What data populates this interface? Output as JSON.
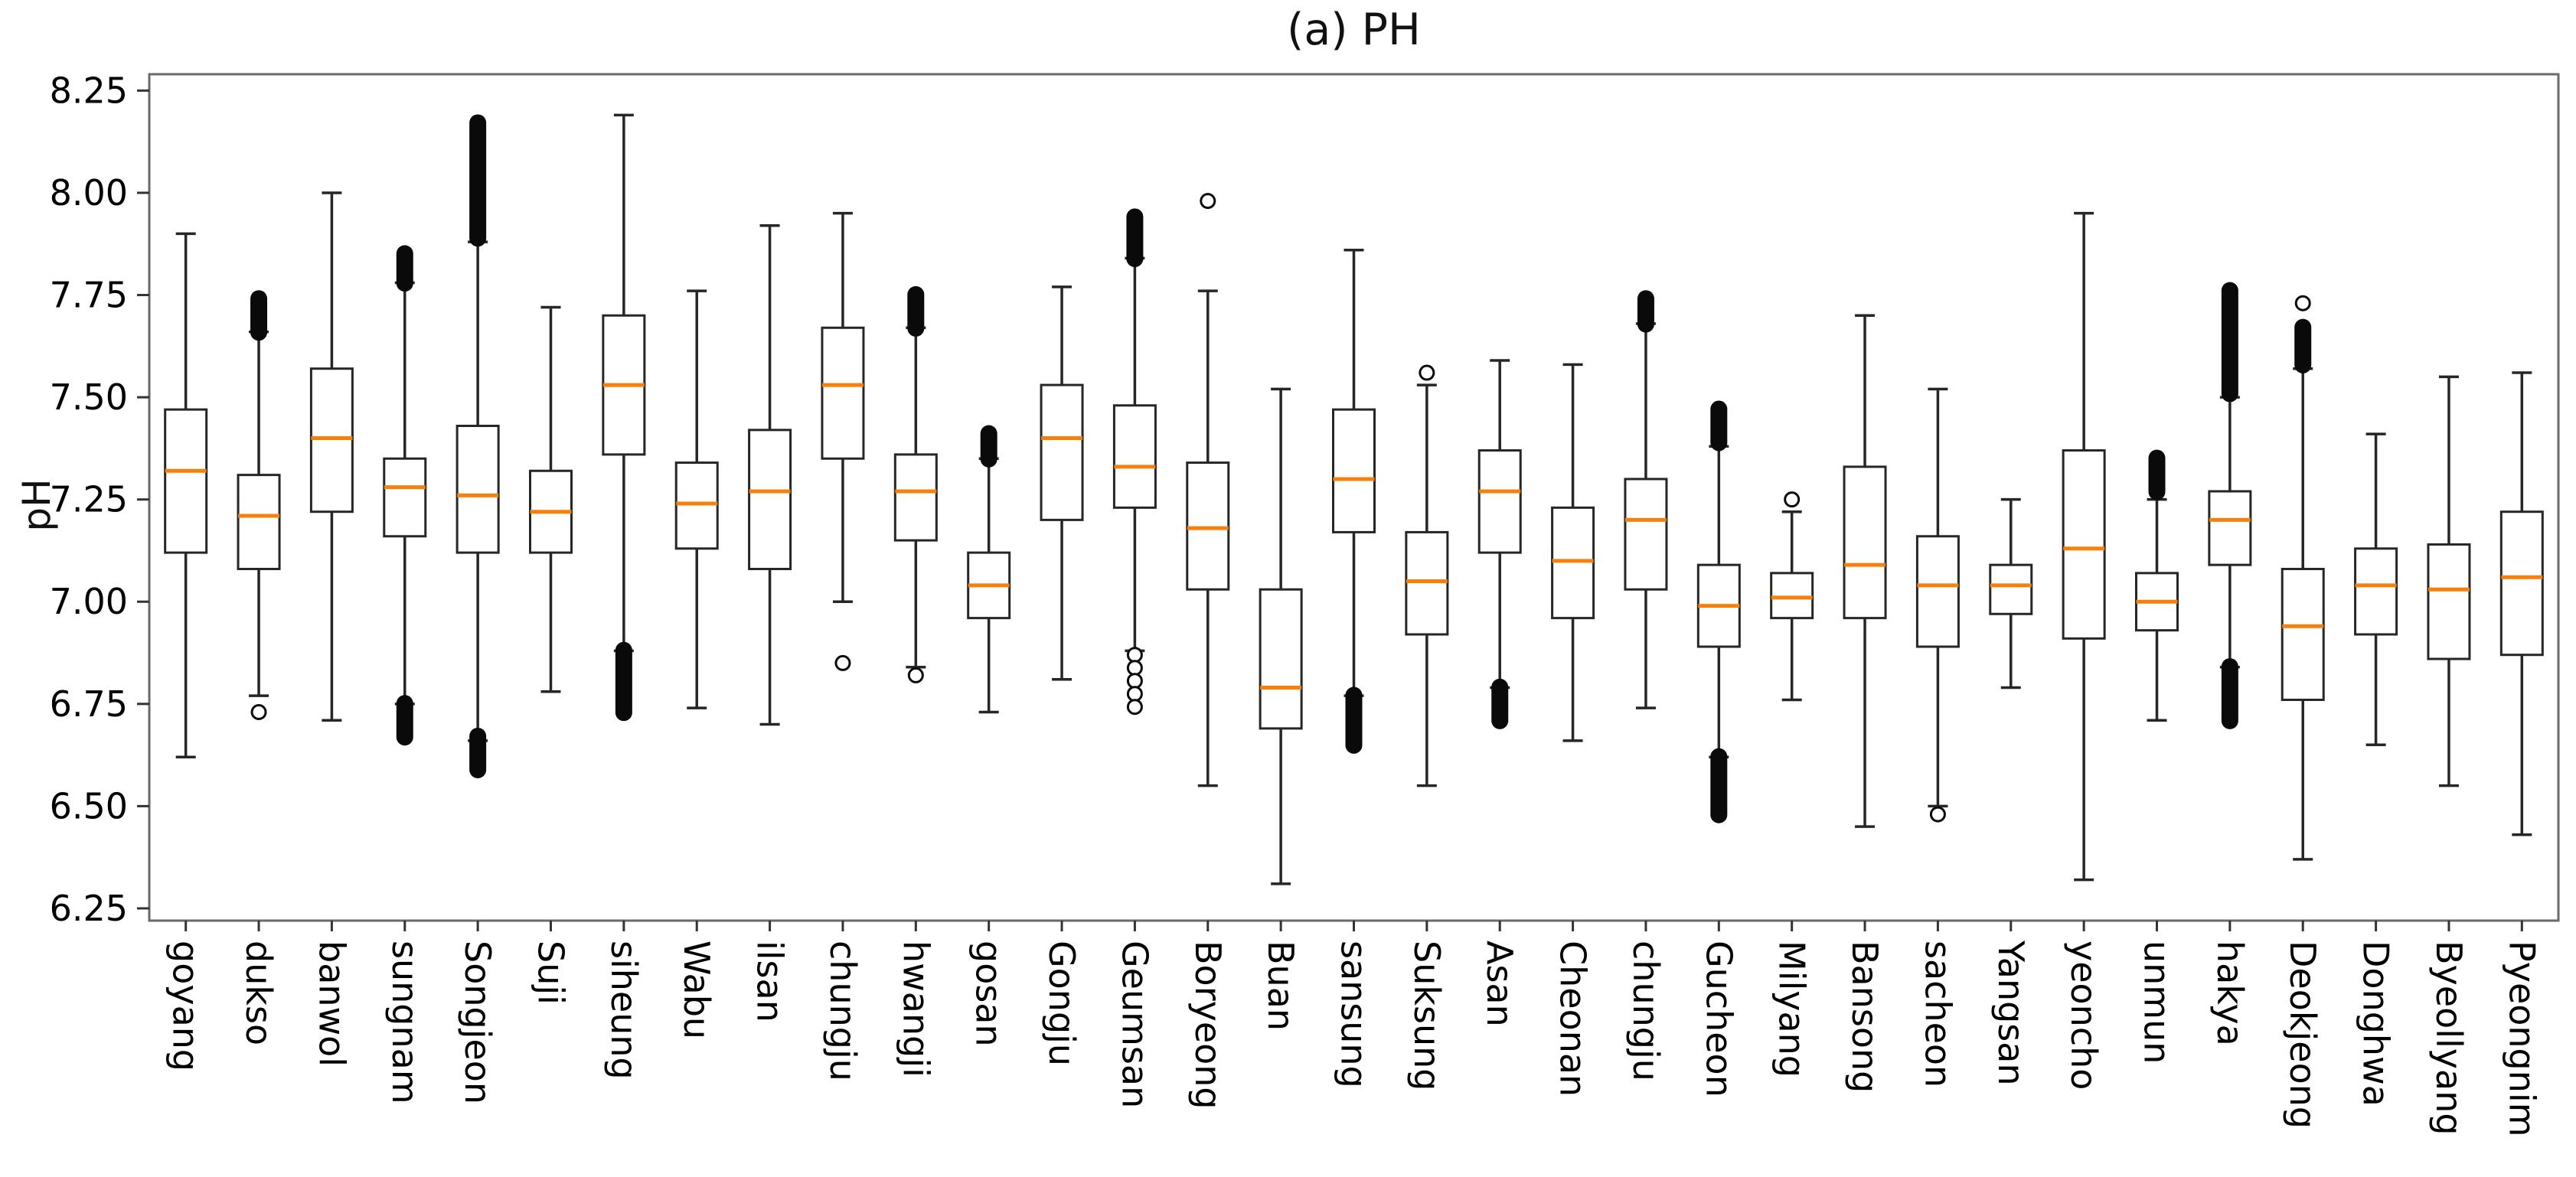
{
  "page": {
    "background": "#ffffff"
  },
  "chart_data": {
    "type": "box",
    "title": "(a) PH",
    "ylabel": "pH",
    "xlabel": "",
    "ylim": [
      6.22,
      8.29
    ],
    "yticks": [
      8.25,
      8.0,
      7.75,
      7.5,
      7.25,
      7.0,
      6.75,
      6.5,
      6.25
    ],
    "grid": false,
    "legend": null,
    "colors": {
      "median": "#f7800d",
      "box_edge": "#262626",
      "whisker": "#262626",
      "outlier": "#0a0a0a",
      "spine": "#6a6a6a",
      "tick": "#333333",
      "text": "#000000",
      "box_fill": "#ffffff"
    },
    "categories": [
      "goyang",
      "dukso",
      "banwol",
      "sungnam",
      "Songjeon",
      "Suji",
      "siheung",
      "Wabu",
      "ilsan",
      "chungju",
      "hwangji",
      "gosan",
      "Gongju",
      "Geumsan",
      "Boryeong",
      "Buan",
      "sansung",
      "Suksung",
      "Asan",
      "Cheonan",
      "chungju",
      "Gucheon",
      "Milyang",
      "Bansong",
      "sacheon",
      "Yangsan",
      "yeoncho",
      "unmun",
      "hakya",
      "Deokjeong",
      "Donghwa",
      "Byeollyang",
      "Pyeongnim"
    ],
    "series": [
      {
        "name": "goyang",
        "whislo": 6.62,
        "q1": 7.12,
        "med": 7.32,
        "q3": 7.47,
        "whishi": 7.9,
        "fliers": []
      },
      {
        "name": "dukso",
        "whislo": 6.77,
        "q1": 7.08,
        "med": 7.21,
        "q3": 7.31,
        "whishi": 7.66,
        "fliers": [
          {
            "style": "dense",
            "from": 7.67,
            "to": 7.73
          },
          {
            "style": "circle",
            "at": 6.73
          }
        ]
      },
      {
        "name": "banwol",
        "whislo": 6.71,
        "q1": 7.22,
        "med": 7.4,
        "q3": 7.57,
        "whishi": 8.0,
        "fliers": []
      },
      {
        "name": "sungnam",
        "whislo": 6.75,
        "q1": 7.16,
        "med": 7.28,
        "q3": 7.35,
        "whishi": 7.78,
        "fliers": [
          {
            "style": "dense",
            "from": 7.79,
            "to": 7.84
          },
          {
            "style": "dense",
            "from": 6.68,
            "to": 6.74
          }
        ]
      },
      {
        "name": "Songjeon",
        "whislo": 6.66,
        "q1": 7.12,
        "med": 7.26,
        "q3": 7.43,
        "whishi": 7.88,
        "fliers": [
          {
            "style": "dense",
            "from": 7.9,
            "to": 8.16
          },
          {
            "style": "dense",
            "from": 6.6,
            "to": 6.66
          }
        ]
      },
      {
        "name": "Suji",
        "whislo": 6.78,
        "q1": 7.12,
        "med": 7.22,
        "q3": 7.32,
        "whishi": 7.72,
        "fliers": []
      },
      {
        "name": "siheung",
        "whislo": 6.88,
        "q1": 7.36,
        "med": 7.53,
        "q3": 7.7,
        "whishi": 8.19,
        "fliers": [
          {
            "style": "dense",
            "from": 6.74,
            "to": 6.87
          }
        ]
      },
      {
        "name": "Wabu",
        "whislo": 6.74,
        "q1": 7.13,
        "med": 7.24,
        "q3": 7.34,
        "whishi": 7.76,
        "fliers": []
      },
      {
        "name": "ilsan",
        "whislo": 6.7,
        "q1": 7.08,
        "med": 7.27,
        "q3": 7.42,
        "whishi": 7.92,
        "fliers": []
      },
      {
        "name": "chungju",
        "whislo": 7.0,
        "q1": 7.35,
        "med": 7.53,
        "q3": 7.67,
        "whishi": 7.95,
        "fliers": [
          {
            "style": "circle",
            "at": 6.85
          }
        ]
      },
      {
        "name": "hwangji",
        "whislo": 6.84,
        "q1": 7.15,
        "med": 7.27,
        "q3": 7.36,
        "whishi": 7.67,
        "fliers": [
          {
            "style": "dense",
            "from": 7.68,
            "to": 7.74
          },
          {
            "style": "circle",
            "at": 6.82
          }
        ]
      },
      {
        "name": "gosan",
        "whislo": 6.73,
        "q1": 6.96,
        "med": 7.04,
        "q3": 7.12,
        "whishi": 7.35,
        "fliers": [
          {
            "style": "dense",
            "from": 7.36,
            "to": 7.4
          }
        ]
      },
      {
        "name": "Gongju",
        "whislo": 6.81,
        "q1": 7.2,
        "med": 7.4,
        "q3": 7.53,
        "whishi": 7.77,
        "fliers": []
      },
      {
        "name": "Geumsan",
        "whislo": 6.88,
        "q1": 7.23,
        "med": 7.33,
        "q3": 7.48,
        "whishi": 7.84,
        "fliers": [
          {
            "style": "dense",
            "from": 7.85,
            "to": 7.93
          },
          {
            "style": "rings",
            "from": 6.72,
            "to": 6.87
          }
        ]
      },
      {
        "name": "Boryeong",
        "whislo": 6.55,
        "q1": 7.03,
        "med": 7.18,
        "q3": 7.34,
        "whishi": 7.76,
        "fliers": [
          {
            "style": "circle",
            "at": 7.98
          }
        ]
      },
      {
        "name": "Buan",
        "whislo": 6.31,
        "q1": 6.69,
        "med": 6.79,
        "q3": 7.03,
        "whishi": 7.52,
        "fliers": []
      },
      {
        "name": "sansung",
        "whislo": 6.77,
        "q1": 7.17,
        "med": 7.3,
        "q3": 7.47,
        "whishi": 7.86,
        "fliers": [
          {
            "style": "dense",
            "from": 6.66,
            "to": 6.76
          }
        ]
      },
      {
        "name": "Suksung",
        "whislo": 6.55,
        "q1": 6.92,
        "med": 7.05,
        "q3": 7.17,
        "whishi": 7.53,
        "fliers": [
          {
            "style": "circle",
            "at": 7.56
          }
        ]
      },
      {
        "name": "Asan",
        "whislo": 6.79,
        "q1": 7.12,
        "med": 7.27,
        "q3": 7.37,
        "whishi": 7.59,
        "fliers": [
          {
            "style": "dense",
            "from": 6.72,
            "to": 6.78
          }
        ]
      },
      {
        "name": "Cheonan",
        "whislo": 6.66,
        "q1": 6.96,
        "med": 7.1,
        "q3": 7.23,
        "whishi": 7.58,
        "fliers": []
      },
      {
        "name": "chungju",
        "whislo": 6.74,
        "q1": 7.03,
        "med": 7.2,
        "q3": 7.3,
        "whishi": 7.68,
        "fliers": [
          {
            "style": "dense",
            "from": 7.69,
            "to": 7.73
          }
        ]
      },
      {
        "name": "Gucheon",
        "whislo": 6.62,
        "q1": 6.89,
        "med": 6.99,
        "q3": 7.09,
        "whishi": 7.38,
        "fliers": [
          {
            "style": "dense",
            "from": 7.4,
            "to": 7.46
          },
          {
            "style": "dense",
            "from": 6.49,
            "to": 6.61
          }
        ]
      },
      {
        "name": "Milyang",
        "whislo": 6.76,
        "q1": 6.96,
        "med": 7.01,
        "q3": 7.07,
        "whishi": 7.22,
        "fliers": [
          {
            "style": "circle",
            "at": 7.25
          }
        ]
      },
      {
        "name": "Bansong",
        "whislo": 6.45,
        "q1": 6.96,
        "med": 7.09,
        "q3": 7.33,
        "whishi": 7.7,
        "fliers": []
      },
      {
        "name": "sacheon",
        "whislo": 6.5,
        "q1": 6.89,
        "med": 7.04,
        "q3": 7.16,
        "whishi": 7.52,
        "fliers": [
          {
            "style": "circle",
            "at": 6.48
          }
        ]
      },
      {
        "name": "Yangsan",
        "whislo": 6.79,
        "q1": 6.97,
        "med": 7.04,
        "q3": 7.09,
        "whishi": 7.25,
        "fliers": []
      },
      {
        "name": "yeoncho",
        "whislo": 6.32,
        "q1": 6.91,
        "med": 7.13,
        "q3": 7.37,
        "whishi": 7.95,
        "fliers": []
      },
      {
        "name": "unmun",
        "whislo": 6.71,
        "q1": 6.93,
        "med": 7.0,
        "q3": 7.07,
        "whishi": 7.25,
        "fliers": [
          {
            "style": "dense",
            "from": 7.28,
            "to": 7.34
          }
        ]
      },
      {
        "name": "hakya",
        "whislo": 6.84,
        "q1": 7.09,
        "med": 7.2,
        "q3": 7.27,
        "whishi": 7.5,
        "fliers": [
          {
            "style": "dense",
            "from": 7.52,
            "to": 7.75
          },
          {
            "style": "dense",
            "from": 6.72,
            "to": 6.83
          }
        ]
      },
      {
        "name": "Deokjeong",
        "whislo": 6.37,
        "q1": 6.76,
        "med": 6.94,
        "q3": 7.08,
        "whishi": 7.57,
        "fliers": [
          {
            "style": "dense",
            "from": 7.59,
            "to": 7.66
          },
          {
            "style": "circle",
            "at": 7.73
          }
        ]
      },
      {
        "name": "Donghwa",
        "whislo": 6.65,
        "q1": 6.92,
        "med": 7.04,
        "q3": 7.13,
        "whishi": 7.41,
        "fliers": []
      },
      {
        "name": "Byeollyang",
        "whislo": 6.55,
        "q1": 6.86,
        "med": 7.03,
        "q3": 7.14,
        "whishi": 7.55,
        "fliers": []
      },
      {
        "name": "Pyeongnim",
        "whislo": 6.43,
        "q1": 6.87,
        "med": 7.06,
        "q3": 7.22,
        "whishi": 7.56,
        "fliers": []
      }
    ]
  }
}
